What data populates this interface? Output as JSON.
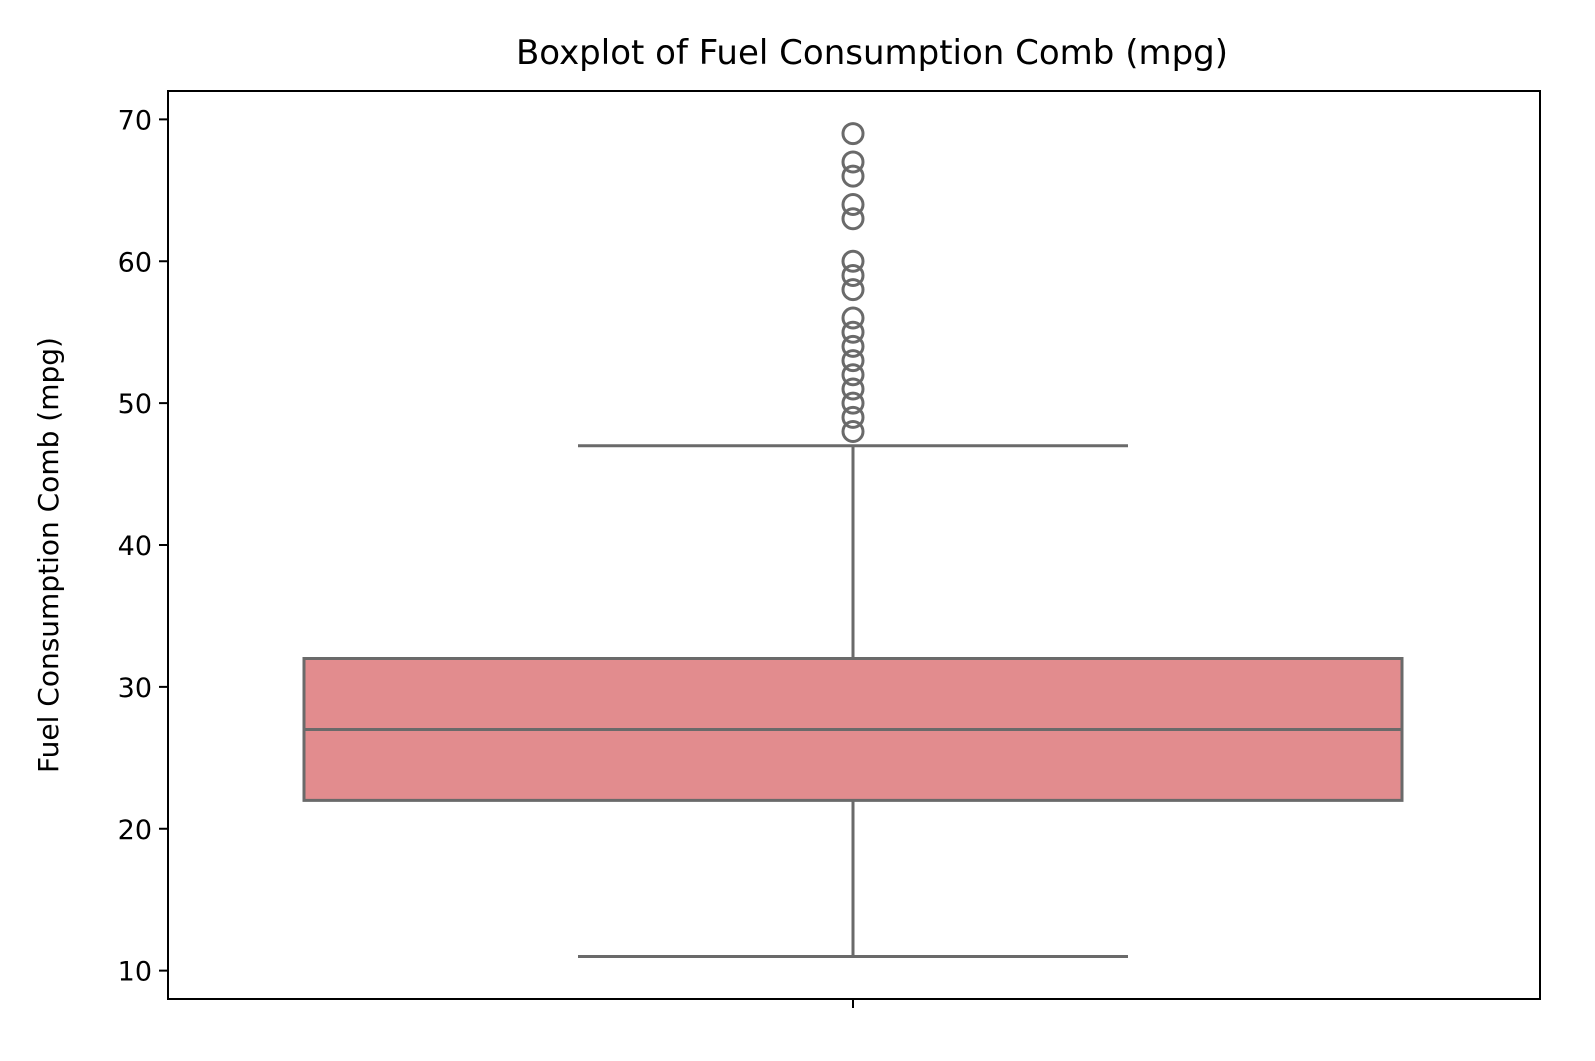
{
  "chart_data": {
    "type": "box",
    "title": "Boxplot of Fuel Consumption Comb (mpg)",
    "xlabel": "",
    "ylabel": "Fuel Consumption Comb (mpg)",
    "ylim": [
      8,
      72
    ],
    "yticks": [
      10,
      20,
      30,
      40,
      50,
      60,
      70
    ],
    "grid": false,
    "legend": "none",
    "box": {
      "whisker_low": 11,
      "q1": 22,
      "median": 27,
      "q3": 32,
      "whisker_high": 47
    },
    "outliers": [
      48,
      49,
      50,
      51,
      52,
      53,
      54,
      55,
      56,
      58,
      59,
      60,
      63,
      64,
      66,
      67,
      69
    ],
    "colors": {
      "box_fill": "#e28c8e",
      "line": "#6a6a6a",
      "frame": "#000000"
    }
  }
}
